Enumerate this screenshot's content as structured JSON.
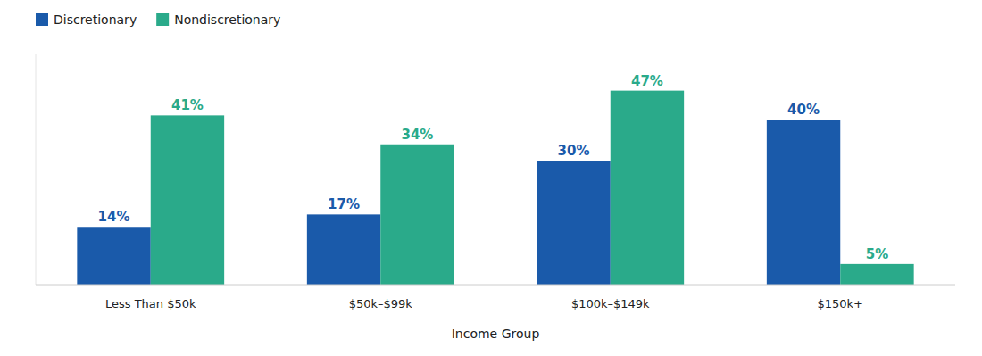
{
  "chart_data": {
    "type": "bar",
    "categories": [
      "Less Than $50k",
      "$50k–$99k",
      "$100k–$149k",
      "$150k+"
    ],
    "series": [
      {
        "name": "Discretionary",
        "color": "#1a5aaa",
        "values": [
          14,
          17,
          30,
          40
        ],
        "value_labels": [
          "14%",
          "17%",
          "30%",
          "40%"
        ]
      },
      {
        "name": "Nondiscretionary",
        "color": "#2aaa8a",
        "values": [
          41,
          34,
          47,
          5
        ],
        "value_labels": [
          "41%",
          "34%",
          "47%",
          "5%"
        ]
      }
    ],
    "xlabel": "Income Group",
    "ylim": [
      0,
      56
    ],
    "legend": "upper left",
    "grid": false,
    "data_labels": true,
    "tick_labels": "x"
  }
}
